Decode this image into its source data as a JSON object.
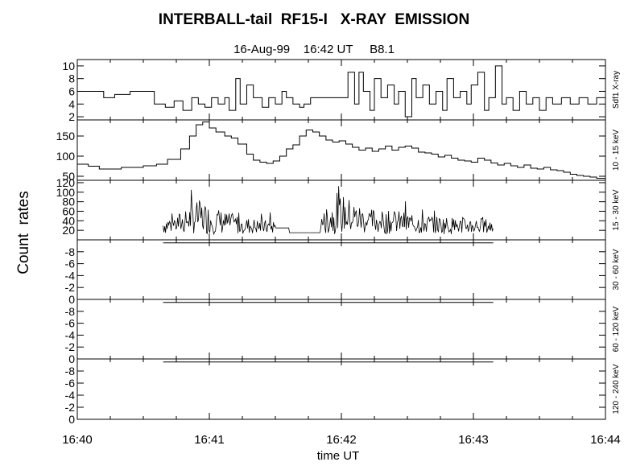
{
  "title": "INTERBALL-tail  RF15-I   X-RAY  EMISSION",
  "subtitle": "16-Aug-99    16:42 UT     B8.1",
  "ylabel": "Count  rates",
  "xlabel": "time UT",
  "chart_data": {
    "type": "line",
    "title": "INTERBALL-tail  RF15-I   X-RAY  EMISSION",
    "subtitle": "16-Aug-99    16:42 UT     B8.1",
    "xlabel": "time UT",
    "ylabel": "Count  rates",
    "x_ticks": [
      "16:40",
      "16:41",
      "16:42",
      "16:43",
      "16:44"
    ],
    "xlim": [
      "16:40",
      "16:44"
    ],
    "panels": [
      {
        "label": "Sdf1 X-ray",
        "ylim": [
          1.5,
          11
        ],
        "yticks": [
          2,
          4,
          6,
          8,
          10
        ],
        "style": "step",
        "series": [
          {
            "x": [
              "16:40:00",
              "16:40:12",
              "16:40:17",
              "16:40:24",
              "16:40:35",
              "16:40:40",
              "16:40:44",
              "16:40:48",
              "16:40:52",
              "16:40:55",
              "16:40:58",
              "16:41:01",
              "16:41:04",
              "16:41:07",
              "16:41:09",
              "16:41:12",
              "16:41:14",
              "16:41:17",
              "16:41:20",
              "16:41:24",
              "16:41:27",
              "16:41:30",
              "16:41:33",
              "16:41:35",
              "16:41:38",
              "16:41:41",
              "16:41:43",
              "16:41:46",
              "16:42:00",
              "16:42:03",
              "16:42:06",
              "16:42:08",
              "16:42:10",
              "16:42:13",
              "16:42:15",
              "16:42:18",
              "16:42:21",
              "16:42:24",
              "16:42:26",
              "16:42:29",
              "16:42:32",
              "16:42:34",
              "16:42:37",
              "16:42:40",
              "16:42:43",
              "16:42:46",
              "16:42:48",
              "16:42:51",
              "16:42:54",
              "16:42:57",
              "16:42:59",
              "16:43:02",
              "16:43:05",
              "16:43:07",
              "16:43:10",
              "16:43:13",
              "16:43:15",
              "16:43:18",
              "16:43:21",
              "16:43:24",
              "16:43:27",
              "16:43:30",
              "16:43:33",
              "16:43:36",
              "16:43:40",
              "16:43:44",
              "16:43:48",
              "16:43:52",
              "16:43:56",
              "16:44:00"
            ],
            "y": [
              6,
              5,
              5.5,
              6,
              4,
              3.5,
              4.5,
              3,
              5,
              4,
              3.5,
              5,
              4,
              5,
              3,
              8,
              4,
              7,
              5,
              3.5,
              5,
              4,
              6,
              5,
              4,
              3.5,
              4,
              5,
              5,
              9,
              4,
              9,
              6,
              3,
              8,
              5,
              7,
              4,
              6,
              2,
              8,
              5,
              7,
              4,
              6,
              3,
              8,
              5,
              6,
              4,
              7,
              9,
              3,
              5,
              10,
              4,
              5,
              3,
              6,
              4,
              5,
              3,
              5,
              4,
              5,
              4,
              5,
              4,
              5,
              4
            ]
          }
        ]
      },
      {
        "label": "10 - 15 keV",
        "ylim": [
          40,
          190
        ],
        "yticks": [
          50,
          100,
          150
        ],
        "style": "step",
        "series": [
          {
            "x": [
              "16:40:00",
              "16:40:05",
              "16:40:10",
              "16:40:20",
              "16:40:30",
              "16:40:36",
              "16:40:41",
              "16:40:47",
              "16:40:51",
              "16:40:54",
              "16:40:57",
              "16:41:00",
              "16:41:03",
              "16:41:07",
              "16:41:10",
              "16:41:13",
              "16:41:17",
              "16:41:20",
              "16:41:23",
              "16:41:26",
              "16:41:29",
              "16:41:32",
              "16:41:35",
              "16:41:38",
              "16:41:41",
              "16:41:44",
              "16:41:47",
              "16:41:50",
              "16:41:53",
              "16:41:56",
              "16:41:59",
              "16:42:02",
              "16:42:05",
              "16:42:08",
              "16:42:11",
              "16:42:14",
              "16:42:17",
              "16:42:20",
              "16:42:23",
              "16:42:26",
              "16:42:29",
              "16:42:32",
              "16:42:35",
              "16:42:38",
              "16:42:41",
              "16:42:44",
              "16:42:47",
              "16:42:50",
              "16:42:53",
              "16:42:56",
              "16:42:59",
              "16:43:02",
              "16:43:05",
              "16:43:08",
              "16:43:11",
              "16:43:14",
              "16:43:17",
              "16:43:20",
              "16:43:23",
              "16:43:26",
              "16:43:29",
              "16:43:32",
              "16:43:35",
              "16:43:38",
              "16:43:41",
              "16:43:44",
              "16:43:47",
              "16:43:50",
              "16:43:53",
              "16:43:56",
              "16:44:00"
            ],
            "y": [
              80,
              75,
              68,
              72,
              76,
              80,
              92,
              118,
              150,
              178,
              185,
              170,
              160,
              150,
              145,
              130,
              105,
              90,
              85,
              82,
              88,
              100,
              118,
              128,
              150,
              165,
              160,
              150,
              140,
              135,
              138,
              130,
              122,
              115,
              120,
              112,
              118,
              125,
              115,
              122,
              125,
              120,
              110,
              108,
              105,
              98,
              102,
              95,
              90,
              88,
              85,
              95,
              90,
              83,
              78,
              82,
              76,
              72,
              78,
              70,
              68,
              72,
              66,
              64,
              60,
              55,
              52,
              50,
              48,
              45,
              43
            ]
          }
        ]
      },
      {
        "label": "15 - 30 keV",
        "ylim": [
          0,
          125
        ],
        "yticks": [
          20,
          40,
          60,
          80,
          100,
          120
        ],
        "style": "noisy",
        "series": [
          {
            "x": [
              "16:40:39",
              "16:40:44",
              "16:40:48",
              "16:40:52",
              "16:40:56",
              "16:41:00",
              "16:41:04",
              "16:41:08",
              "16:41:12",
              "16:41:16",
              "16:41:20",
              "16:41:25",
              "16:41:30",
              "16:41:50",
              "16:41:55",
              "16:42:00",
              "16:42:05",
              "16:42:10",
              "16:42:15",
              "16:42:20",
              "16:42:25",
              "16:42:30",
              "16:42:35",
              "16:42:40",
              "16:42:45",
              "16:42:50",
              "16:42:55",
              "16:43:00",
              "16:43:05",
              "16:43:09"
            ],
            "y": [
              30,
              35,
              40,
              55,
              60,
              50,
              45,
              38,
              35,
              30,
              28,
              25,
              25,
              30,
              55,
              70,
              60,
              48,
              45,
              40,
              42,
              38,
              36,
              34,
              32,
              30,
              28,
              30,
              28,
              25
            ]
          }
        ]
      },
      {
        "label": "30 - 60 keV",
        "ylim": [
          0,
          10
        ],
        "yticks": [
          0,
          2,
          4,
          6,
          8
        ],
        "ytick_labels": [
          "0",
          "-2",
          "-4",
          "-6",
          "-8"
        ],
        "style": "flat",
        "series": [
          {
            "x": [
              "16:40:39",
              "16:43:09"
            ],
            "y": [
              9.5,
              9.5
            ]
          }
        ]
      },
      {
        "label": "60 - 120 keV",
        "ylim": [
          0,
          10
        ],
        "yticks": [
          0,
          2,
          4,
          6,
          8
        ],
        "ytick_labels": [
          "0",
          "-2",
          "-4",
          "-6",
          "-8"
        ],
        "style": "flat",
        "series": [
          {
            "x": [
              "16:40:39",
              "16:43:09"
            ],
            "y": [
              9.5,
              9.5
            ]
          }
        ]
      },
      {
        "label": "120 - 240 keV",
        "ylim": [
          0,
          10
        ],
        "yticks": [
          0,
          2,
          4,
          6,
          8
        ],
        "ytick_labels": [
          "0",
          "-2",
          "-4",
          "-6",
          "-8"
        ],
        "style": "flat",
        "series": [
          {
            "x": [
              "16:40:39",
              "16:43:09"
            ],
            "y": [
              9.5,
              9.5
            ]
          }
        ]
      }
    ]
  }
}
